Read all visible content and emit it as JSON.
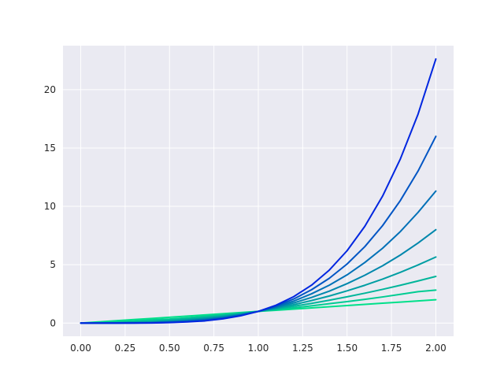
{
  "chart_data": {
    "type": "line",
    "title": "",
    "xlabel": "",
    "ylabel": "",
    "xlim": [
      -0.1,
      2.1
    ],
    "ylim": [
      -1.13,
      23.77
    ],
    "grid": true,
    "legend": "none",
    "x_ticks": [
      0.0,
      0.25,
      0.5,
      0.75,
      1.0,
      1.25,
      1.5,
      1.75,
      2.0
    ],
    "x_tick_labels": [
      "0.00",
      "0.25",
      "0.50",
      "0.75",
      "1.00",
      "1.25",
      "1.50",
      "1.75",
      "2.00"
    ],
    "y_ticks": [
      0,
      5,
      10,
      15,
      20
    ],
    "y_tick_labels": [
      "0",
      "5",
      "10",
      "15",
      "20"
    ],
    "x": [
      0.0,
      0.1,
      0.2,
      0.3,
      0.4,
      0.5,
      0.6,
      0.7,
      0.8,
      0.9,
      1.0,
      1.1,
      1.2,
      1.3,
      1.4,
      1.5,
      1.6,
      1.7,
      1.8,
      1.9,
      2.0
    ],
    "series": [
      {
        "color": "#00e08a",
        "values": [
          0,
          0.1,
          0.2,
          0.3,
          0.4,
          0.5,
          0.6,
          0.7,
          0.8,
          0.9,
          1.0,
          1.1,
          1.2,
          1.3,
          1.4,
          1.5,
          1.6,
          1.7,
          1.8,
          1.9,
          2.0
        ]
      },
      {
        "color": "#00cc92",
        "values": [
          0,
          0.04,
          0.1,
          0.18,
          0.28,
          0.35,
          0.46,
          0.59,
          0.73,
          0.86,
          1.0,
          1.15,
          1.31,
          1.48,
          1.66,
          1.84,
          2.03,
          2.24,
          2.46,
          2.69,
          2.83
        ]
      },
      {
        "color": "#00b59a",
        "values": [
          0,
          0.02,
          0.04,
          0.09,
          0.16,
          0.25,
          0.36,
          0.49,
          0.64,
          0.81,
          1.0,
          1.21,
          1.44,
          1.69,
          1.96,
          2.25,
          2.56,
          2.89,
          3.24,
          3.61,
          4.0
        ]
      },
      {
        "color": "#009ea3",
        "values": [
          0,
          0.01,
          0.02,
          0.05,
          0.09,
          0.18,
          0.28,
          0.41,
          0.57,
          0.76,
          1.0,
          1.27,
          1.58,
          1.93,
          2.32,
          2.76,
          3.24,
          3.77,
          4.35,
          4.98,
          5.66
        ]
      },
      {
        "color": "#0087ac",
        "values": [
          0,
          0.0,
          0.01,
          0.03,
          0.06,
          0.13,
          0.22,
          0.34,
          0.51,
          0.73,
          1.0,
          1.33,
          1.73,
          2.2,
          2.74,
          3.38,
          4.1,
          4.91,
          5.83,
          6.86,
          8.0
        ]
      },
      {
        "color": "#0070b7",
        "values": [
          0,
          0.0,
          0.0,
          0.01,
          0.03,
          0.09,
          0.17,
          0.29,
          0.46,
          0.69,
          1.0,
          1.39,
          1.89,
          2.51,
          3.25,
          4.13,
          5.19,
          6.41,
          7.84,
          9.49,
          11.31
        ]
      },
      {
        "color": "#0055c4",
        "values": [
          0,
          0.0,
          0.0,
          0.01,
          0.02,
          0.06,
          0.13,
          0.24,
          0.41,
          0.66,
          1.0,
          1.46,
          2.07,
          2.86,
          3.84,
          5.06,
          6.55,
          8.35,
          10.5,
          13.03,
          16.0
        ]
      },
      {
        "color": "#0026e0",
        "values": [
          0,
          0.0,
          0.0,
          0.0,
          0.01,
          0.04,
          0.1,
          0.19,
          0.36,
          0.62,
          1.0,
          1.53,
          2.27,
          3.25,
          4.54,
          6.2,
          8.29,
          10.88,
          14.06,
          17.91,
          22.63
        ]
      }
    ]
  }
}
